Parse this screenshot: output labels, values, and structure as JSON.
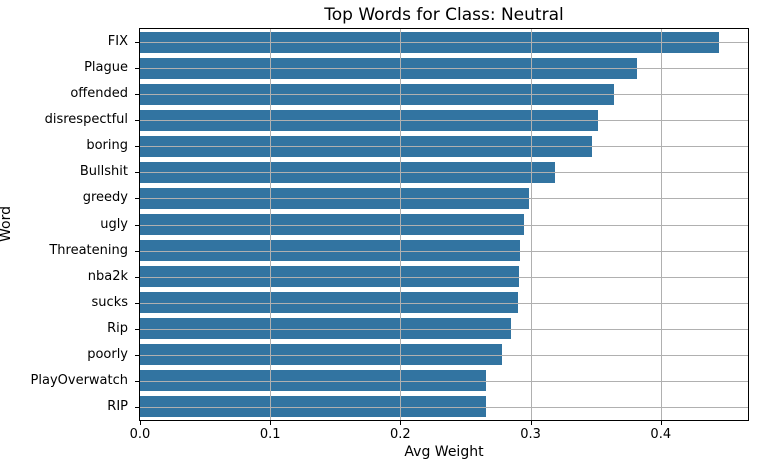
{
  "figure": {
    "title": "Top Words for Class: Neutral",
    "xlabel": "Avg Weight",
    "ylabel": "Word"
  },
  "chart_data": {
    "type": "bar",
    "orientation": "horizontal",
    "title": "Top Words for Class: Neutral",
    "xlabel": "Avg Weight",
    "ylabel": "Word",
    "categories": [
      "FIX",
      "Plague",
      "offended",
      "disrespectful",
      "boring",
      "Bullshit",
      "greedy",
      "ugly",
      "Threatening",
      "nba2k",
      "sucks",
      "Rip",
      "poorly",
      "PlayOverwatch",
      "RIP"
    ],
    "values": [
      0.445,
      0.382,
      0.364,
      0.352,
      0.347,
      0.319,
      0.299,
      0.295,
      0.292,
      0.291,
      0.29,
      0.285,
      0.278,
      0.266,
      0.266
    ],
    "xlim": [
      0,
      0.467
    ],
    "xticks": [
      0.0,
      0.1,
      0.2,
      0.3,
      0.4
    ],
    "xtick_labels": [
      "0.0",
      "0.1",
      "0.2",
      "0.3",
      "0.4"
    ],
    "grid": true,
    "grid_above_bars": true,
    "legend_position": "none",
    "colors": {
      "bar": "#3274a1",
      "grid": "#b0b0b0",
      "spine": "#000000",
      "text": "#000000",
      "background": "#ffffff"
    }
  }
}
